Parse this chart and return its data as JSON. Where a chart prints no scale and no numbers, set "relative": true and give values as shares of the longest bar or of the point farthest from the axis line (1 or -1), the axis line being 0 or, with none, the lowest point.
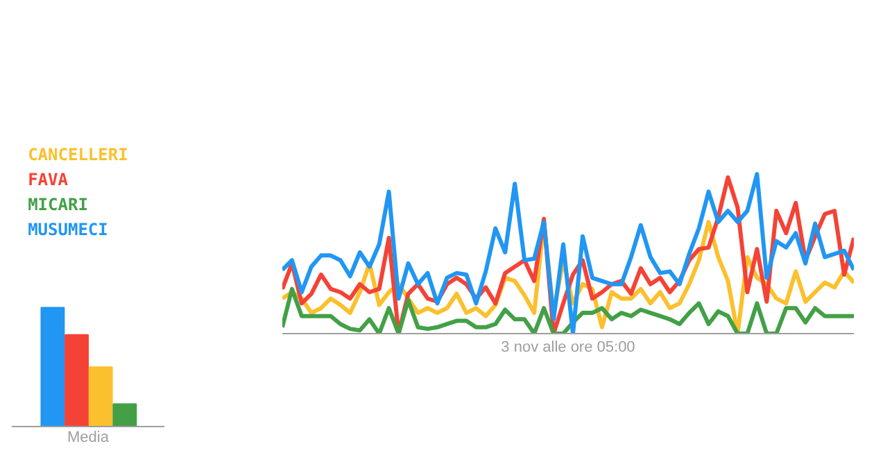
{
  "chart_data": [
    {
      "type": "line",
      "relative": true,
      "grid": false,
      "marker": "none",
      "line_style": "solid",
      "annotations": [
        "3 nov alle ore 05:00"
      ],
      "categories": [
        null,
        null,
        null,
        null,
        null,
        null,
        null,
        null,
        null,
        null,
        null,
        null,
        null,
        null,
        null,
        null,
        null,
        null,
        null,
        null,
        null,
        null,
        null,
        null,
        null,
        null,
        null,
        null,
        null,
        null,
        null,
        null,
        null,
        null,
        null,
        null,
        null,
        null,
        null,
        null,
        null,
        null,
        null,
        null,
        null,
        null,
        null,
        null,
        null,
        null,
        null,
        null,
        null,
        null,
        null,
        null,
        null,
        null,
        null,
        null
      ],
      "series": [
        {
          "name": "CANCELLERI",
          "color": "#fbc02d",
          "values": [
            0.22,
            0.26,
            0.22,
            0.13,
            0.16,
            0.22,
            0.18,
            0.13,
            0.26,
            0.44,
            0.18,
            0.26,
            0.31,
            0.22,
            0.13,
            0.16,
            0.13,
            0.16,
            0.25,
            0.13,
            0.16,
            0.11,
            0.18,
            0.35,
            0.33,
            0.24,
            0.13,
            0.7,
            0.13,
            0.46,
            0.19,
            0.31,
            0.28,
            0.04,
            0.26,
            0.22,
            0.22,
            0.28,
            0.19,
            0.26,
            0.16,
            0.19,
            0.31,
            0.46,
            0.7,
            0.48,
            0.33,
            0,
            0.48,
            0.35,
            0.31,
            0.22,
            0.19,
            0.39,
            0.2,
            0.26,
            0.32,
            0.29,
            0.39,
            0.32
          ]
        },
        {
          "name": "FAVA",
          "color": "#f44336",
          "values": [
            0.28,
            0.44,
            0.19,
            0.25,
            0.37,
            0.28,
            0.26,
            0.22,
            0.31,
            0.26,
            0.28,
            0.6,
            0,
            0.25,
            0.31,
            0.22,
            0.2,
            0.31,
            0.35,
            0.31,
            0.22,
            0.29,
            0.19,
            0.38,
            0.42,
            0.46,
            0.33,
            0.72,
            0,
            0.19,
            0.37,
            0.46,
            0.22,
            0.26,
            0.31,
            0.33,
            0.25,
            0.41,
            0.31,
            0.35,
            0.26,
            0.33,
            0.46,
            0.53,
            0.54,
            0.73,
            0.98,
            0.79,
            0.26,
            0.53,
            0.2,
            0.77,
            0.63,
            0.82,
            0.46,
            0.61,
            0.75,
            0.77,
            0.37,
            0.6
          ]
        },
        {
          "name": "MICARI",
          "color": "#43a047",
          "values": [
            0.04,
            0.28,
            0.11,
            0.11,
            0.11,
            0.11,
            0.06,
            0.03,
            0.02,
            0.09,
            0,
            0.16,
            0,
            0.21,
            0.04,
            0.03,
            0.04,
            0.06,
            0.08,
            0.08,
            0.04,
            0.04,
            0.06,
            0.15,
            0.09,
            0.09,
            0,
            0.16,
            0,
            0,
            0.07,
            0.13,
            0.13,
            0.16,
            0.09,
            0.13,
            0.11,
            0.15,
            0.13,
            0.11,
            0.09,
            0.06,
            0.13,
            0.19,
            0.06,
            0.14,
            0.11,
            0,
            0,
            0.19,
            0,
            0,
            0.16,
            0.16,
            0.07,
            0.16,
            0.11,
            0.11,
            0.11,
            0.11
          ]
        },
        {
          "name": "MUSUMECI",
          "color": "#2196f3",
          "values": [
            0.4,
            0.46,
            0.26,
            0.42,
            0.49,
            0.49,
            0.46,
            0.36,
            0.51,
            0.42,
            0.56,
            0.89,
            0.22,
            0.44,
            0.31,
            0.38,
            0.19,
            0.35,
            0.38,
            0.37,
            0.19,
            0.39,
            0.66,
            0.51,
            0.94,
            0.46,
            0.47,
            0.7,
            0.09,
            0.56,
            0,
            0.61,
            0.35,
            0.33,
            0.31,
            0.31,
            0.48,
            0.68,
            0.48,
            0.38,
            0.39,
            0.31,
            0.5,
            0.66,
            0.89,
            0.7,
            0.77,
            0.7,
            0.77,
            1,
            0.35,
            0.58,
            0.54,
            0.63,
            0.44,
            0.69,
            0.48,
            0.5,
            0.52,
            0.4
          ]
        }
      ]
    },
    {
      "type": "bar",
      "relative": true,
      "xlabel": "Media",
      "categories": [
        null,
        null,
        null,
        null
      ],
      "values": [
        1,
        0.77,
        0.5,
        0.19
      ],
      "colors": [
        "#2196f3",
        "#f44336",
        "#fbc02d",
        "#43a047"
      ]
    }
  ]
}
